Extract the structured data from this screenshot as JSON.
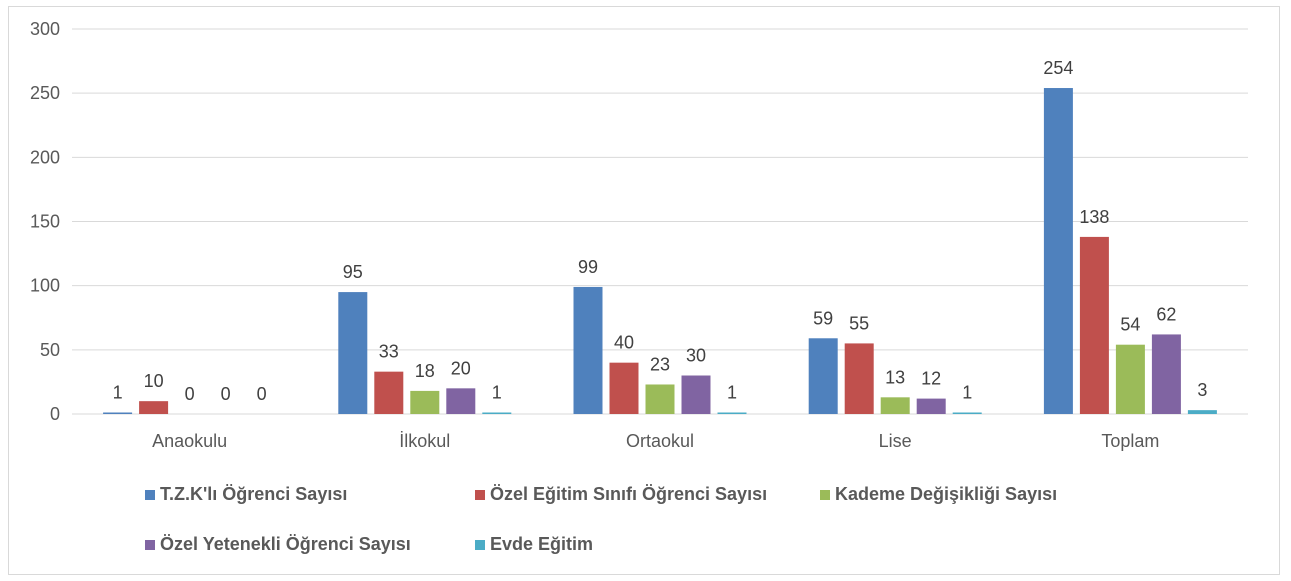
{
  "chart_data": {
    "type": "bar",
    "categories": [
      "Anaokulu",
      "İlkokul",
      "Ortaokul",
      "Lise",
      "Toplam"
    ],
    "series": [
      {
        "name": "T.Z.K'lı Öğrenci Sayısı",
        "color": "#4f81bd",
        "values": [
          1,
          95,
          99,
          59,
          254
        ]
      },
      {
        "name": "Özel Eğitim Sınıfı Öğrenci Sayısı",
        "color": "#c0504d",
        "values": [
          10,
          33,
          40,
          55,
          138
        ]
      },
      {
        "name": "Kademe Değişikliği Sayısı",
        "color": "#9bbb59",
        "values": [
          0,
          18,
          23,
          13,
          54
        ]
      },
      {
        "name": "Özel Yetenekli Öğrenci Sayısı",
        "color": "#8064a2",
        "values": [
          0,
          20,
          30,
          12,
          62
        ]
      },
      {
        "name": "Evde Eğitim",
        "color": "#4bacc6",
        "values": [
          0,
          1,
          1,
          1,
          3
        ]
      }
    ],
    "ylim": [
      0,
      300
    ],
    "yticks": [
      0,
      50,
      100,
      150,
      200,
      250,
      300
    ],
    "grid": true,
    "legend_position": "bottom",
    "data_labels": true
  }
}
